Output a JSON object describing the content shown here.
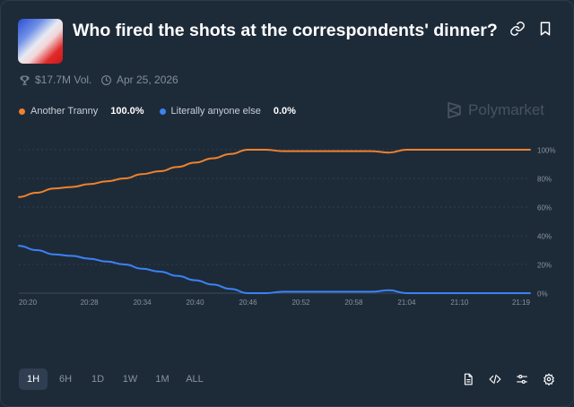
{
  "market": {
    "title": "Who fired the shots at the correspondents' dinner?",
    "volume": "$17.7M Vol.",
    "date": "Apr 25, 2026",
    "brand": "Polymarket"
  },
  "icons": {
    "link": "link-icon",
    "bookmark": "bookmark-icon",
    "volume": "trophy-icon",
    "date": "clock-icon",
    "brand": "polymarket-logo-icon",
    "doc": "document-icon",
    "embed": "code-icon",
    "filter": "sliders-icon",
    "settings": "gear-icon"
  },
  "legend": [
    {
      "name": "Another Tranny",
      "value": "100.0%",
      "color": "#f0812c"
    },
    {
      "name": "Literally anyone else",
      "value": "0.0%",
      "color": "#3b82f6"
    }
  ],
  "ranges": [
    {
      "label": "1H",
      "active": true
    },
    {
      "label": "6H",
      "active": false
    },
    {
      "label": "1D",
      "active": false
    },
    {
      "label": "1W",
      "active": false
    },
    {
      "label": "1M",
      "active": false
    },
    {
      "label": "ALL",
      "active": false
    }
  ],
  "chart_data": {
    "type": "line",
    "x": [
      "20:20",
      "20:22",
      "20:24",
      "20:26",
      "20:28",
      "20:30",
      "20:32",
      "20:34",
      "20:36",
      "20:38",
      "20:40",
      "20:42",
      "20:44",
      "20:46",
      "20:48",
      "20:50",
      "20:52",
      "20:54",
      "20:56",
      "20:58",
      "21:00",
      "21:02",
      "21:04",
      "21:06",
      "21:08",
      "21:10",
      "21:12",
      "21:14",
      "21:16",
      "21:19"
    ],
    "x_ticks": [
      "20:20",
      "20:28",
      "20:34",
      "20:40",
      "20:46",
      "20:52",
      "20:58",
      "21:04",
      "21:10",
      "21:19"
    ],
    "series": [
      {
        "name": "Another Tranny",
        "color": "#f0812c",
        "values": [
          67,
          70,
          73,
          74,
          76,
          78,
          80,
          83,
          85,
          88,
          91,
          94,
          97,
          100,
          100,
          99,
          99,
          99,
          99,
          99,
          99,
          98,
          100,
          100,
          100,
          100,
          100,
          100,
          100,
          100
        ]
      },
      {
        "name": "Literally anyone else",
        "color": "#3b82f6",
        "values": [
          33,
          30,
          27,
          26,
          24,
          22,
          20,
          17,
          15,
          12,
          9,
          6,
          3,
          0,
          0,
          1,
          1,
          1,
          1,
          1,
          1,
          2,
          0,
          0,
          0,
          0,
          0,
          0,
          0,
          0
        ]
      }
    ],
    "y_ticks": [
      "0%",
      "20%",
      "40%",
      "60%",
      "80%",
      "100%"
    ],
    "ylim": [
      0,
      100
    ],
    "grid": true
  }
}
